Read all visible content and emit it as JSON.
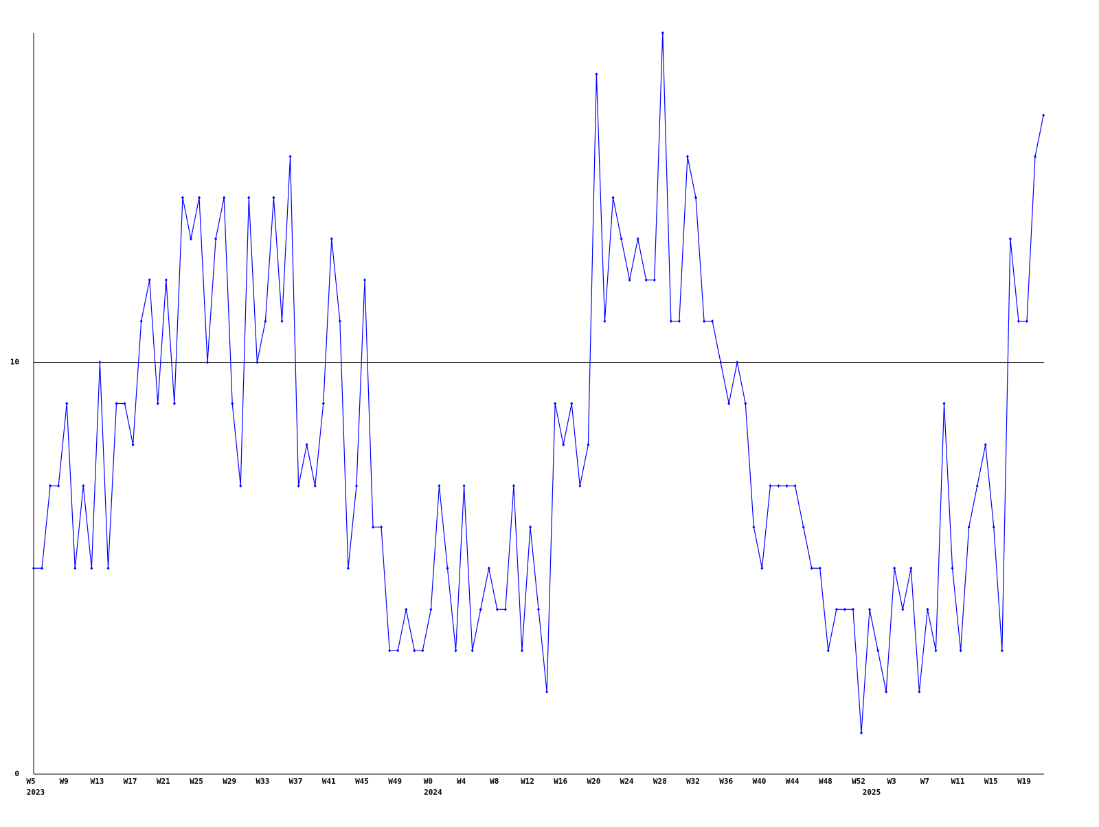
{
  "chart_data": {
    "type": "line",
    "categories": [
      "W5",
      null,
      null,
      null,
      "W9",
      null,
      null,
      null,
      "W13",
      null,
      null,
      null,
      "W17",
      null,
      null,
      null,
      "W21",
      null,
      null,
      null,
      "W25",
      null,
      null,
      null,
      "W29",
      null,
      null,
      null,
      "W33",
      null,
      null,
      null,
      "W37",
      null,
      null,
      null,
      "W41",
      null,
      null,
      null,
      "W45",
      null,
      null,
      null,
      "W49",
      null,
      null,
      null,
      "W0",
      null,
      null,
      null,
      "W4",
      null,
      null,
      null,
      "W8",
      null,
      null,
      null,
      "W12",
      null,
      null,
      null,
      "W16",
      null,
      null,
      null,
      "W20",
      null,
      null,
      null,
      "W24",
      null,
      null,
      null,
      "W28",
      null,
      null,
      null,
      "W32",
      null,
      null,
      null,
      "W36",
      null,
      null,
      null,
      "W40",
      null,
      null,
      null,
      "W44",
      null,
      null,
      null,
      "W48",
      null,
      null,
      null,
      "W52",
      null,
      null,
      null,
      "W3",
      null,
      null,
      null,
      "W7",
      null,
      null,
      null,
      "W11",
      null,
      null,
      null,
      "W15",
      null,
      null,
      null,
      "W19",
      null,
      null
    ],
    "year_labels": [
      "2023",
      null,
      null,
      null,
      null,
      null,
      null,
      null,
      null,
      null,
      null,
      null,
      null,
      null,
      null,
      null,
      null,
      null,
      null,
      null,
      null,
      null,
      null,
      null,
      null,
      null,
      null,
      null,
      null,
      null,
      null,
      null,
      null,
      null,
      null,
      null,
      null,
      null,
      null,
      null,
      null,
      null,
      null,
      null,
      null,
      null,
      null,
      null,
      "2024",
      null,
      null,
      null,
      null,
      null,
      null,
      null,
      null,
      null,
      null,
      null,
      null,
      null,
      null,
      null,
      null,
      null,
      null,
      null,
      null,
      null,
      null,
      null,
      null,
      null,
      null,
      null,
      null,
      null,
      null,
      null,
      null,
      null,
      null,
      null,
      null,
      null,
      null,
      null,
      null,
      null,
      null,
      null,
      null,
      null,
      null,
      null,
      null,
      null,
      null,
      null,
      null,
      "2025",
      null,
      null,
      null,
      null,
      null,
      null,
      null,
      null,
      null,
      null,
      null,
      null,
      null,
      null,
      null,
      null,
      null,
      null,
      null,
      null
    ],
    "series": [
      {
        "color": "#0000ff",
        "values": [
          5,
          5,
          7,
          7,
          9,
          5,
          7,
          5,
          10,
          5,
          9,
          9,
          8,
          11,
          12,
          9,
          12,
          9,
          14,
          13,
          14,
          10,
          13,
          14,
          9,
          7,
          14,
          10,
          11,
          14,
          11,
          15,
          7,
          8,
          7,
          9,
          13,
          11,
          5,
          7,
          12,
          6,
          6,
          3,
          3,
          4,
          3,
          3,
          4,
          7,
          5,
          3,
          7,
          3,
          4,
          5,
          4,
          4,
          7,
          3,
          6,
          4,
          2,
          9,
          8,
          9,
          7,
          8,
          17,
          11,
          14,
          13,
          12,
          13,
          12,
          12,
          18,
          11,
          11,
          15,
          14,
          11,
          11,
          10,
          9,
          10,
          9,
          6,
          5,
          7,
          7,
          7,
          7,
          6,
          5,
          5,
          3,
          4,
          4,
          4,
          1,
          4,
          3,
          2,
          5,
          4,
          5,
          2,
          4,
          3,
          9,
          5,
          3,
          6,
          7,
          8,
          6,
          3,
          13,
          11,
          11,
          15,
          16
        ]
      }
    ],
    "ylim": [
      0,
      18
    ],
    "yticks": [
      0,
      10
    ],
    "grid": true
  }
}
